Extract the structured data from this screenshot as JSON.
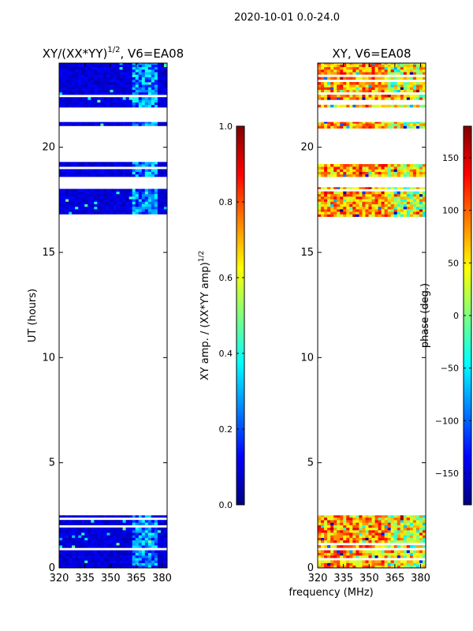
{
  "suptitle": "2020-10-01 0.0-24.0",
  "xlabel_shared": "frequency (MHz)",
  "chart_data": [
    {
      "type": "heatmap",
      "title": "XY/(XX*YY)",
      "title_superscript": "1/2",
      "title_suffix": ", V6=EA08",
      "ylabel": "UT (hours)",
      "x_ticks": [
        "320",
        "335",
        "350",
        "365",
        "380"
      ],
      "xlim": [
        320,
        383
      ],
      "ylim": [
        0,
        24
      ],
      "y_ticks": [
        0,
        5,
        10,
        15,
        20
      ],
      "colorbar": {
        "label": "XY amp. / (XX*YY amp)",
        "label_superscript": "1/2",
        "range": [
          0.0,
          1.0
        ],
        "ticks": [
          "0.0",
          "0.2",
          "0.4",
          "0.6",
          "0.8",
          "1.0"
        ],
        "colormap": "jet"
      },
      "data_bands_ut": [
        [
          0.0,
          2.5
        ],
        [
          16.7,
          18.1
        ],
        [
          18.6,
          19.3
        ],
        [
          20.9,
          21.2
        ],
        [
          21.9,
          24.0
        ]
      ],
      "hot_freq_band_mhz": [
        362,
        376
      ],
      "typical_value": 0.05,
      "hot_value": 0.25
    },
    {
      "type": "heatmap",
      "title": "XY, V6=EA08",
      "x_ticks": [
        "320",
        "335",
        "350",
        "365",
        "380"
      ],
      "xlim": [
        320,
        383
      ],
      "ylim": [
        0,
        24
      ],
      "y_ticks": [
        0,
        5,
        10,
        15,
        20
      ],
      "colorbar": {
        "label": "phase (deg.)",
        "range": [
          -180,
          180
        ],
        "ticks": [
          "150",
          "100",
          "50",
          "0",
          "−50",
          "−100",
          "−150"
        ],
        "colormap": "jet"
      },
      "data_bands_ut": [
        [
          0.0,
          2.5
        ],
        [
          16.7,
          18.1
        ],
        [
          18.6,
          19.3
        ],
        [
          20.9,
          21.2
        ],
        [
          21.9,
          24.0
        ]
      ],
      "typical_value": 80
    }
  ]
}
